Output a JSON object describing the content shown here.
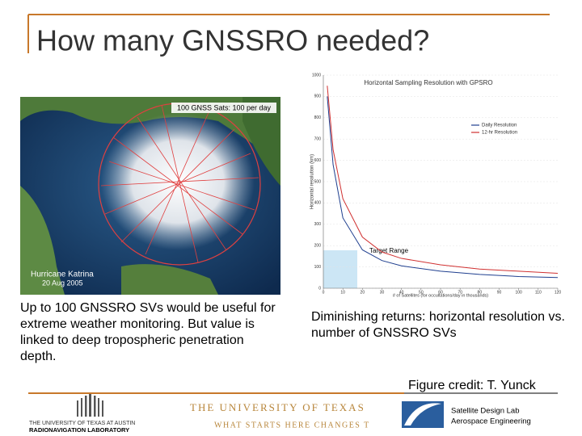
{
  "slide": {
    "title": "How many GNSSRO needed?",
    "image": {
      "banner": "100 GNSS Sats: 100 per day",
      "storm": "Hurricane Katrina",
      "date": "20 Aug 2005"
    },
    "left_caption": "Up to 100 GNSSRO SVs would be useful for extreme weather monitoring. But value is linked to deep tropospheric penetration depth.",
    "right_caption": "Diminishing returns: horizontal resolution vs. number of GNSSRO SVs",
    "credit": "Figure credit: T. Yunck",
    "footer": {
      "rnl_top": "THE UNIVERSITY OF TEXAS AT AUSTIN",
      "rnl_bottom": "RADIONAVIGATION LABORATORY",
      "ut_top": "THE UNIVERSITY OF TEXAS",
      "ut_bottom": "WHAT STARTS HERE CHANGES T",
      "sdl_top": "Satellite Design Lab",
      "sdl_bottom": "Aerospace Engineering"
    }
  },
  "chart_data": {
    "type": "line",
    "title": "Horizontal Sampling Resolution with GPSRO",
    "x_label": "# of Satellites (for occultations/day in thousands)",
    "y_label": "Horizontal resolution (km)",
    "annotation": "Target Range",
    "x": [
      2,
      5,
      10,
      20,
      30,
      40,
      60,
      80,
      100,
      120
    ],
    "series": [
      {
        "name": "Daily Resolution",
        "color": "#1f3f8f",
        "values": [
          900,
          580,
          330,
          180,
          130,
          105,
          80,
          65,
          55,
          50
        ]
      },
      {
        "name": "12-hr Resolution",
        "color": "#d03030",
        "values": [
          950,
          650,
          420,
          240,
          170,
          140,
          110,
          90,
          80,
          70
        ]
      }
    ],
    "xlim": [
      0,
      120
    ],
    "ylim": [
      0,
      1000
    ],
    "xticks": [
      0,
      10,
      20,
      30,
      40,
      50,
      60,
      70,
      80,
      90,
      100,
      110,
      120
    ],
    "yticks": [
      0,
      100,
      200,
      300,
      400,
      500,
      600,
      700,
      800,
      900,
      1000
    ],
    "grid": true,
    "legend": "upper right"
  }
}
